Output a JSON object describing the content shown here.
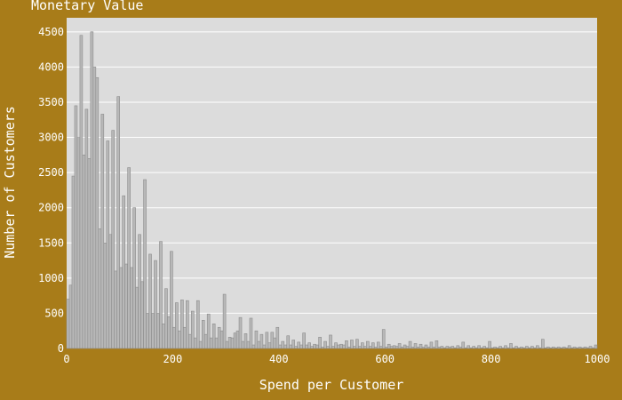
{
  "chart_data": {
    "type": "bar",
    "title": "Monetary Value",
    "xlabel": "Spend per Customer",
    "ylabel": "Number of Customers",
    "xlim": [
      0,
      1000
    ],
    "ylim": [
      0,
      4700
    ],
    "x_ticks": [
      0,
      200,
      400,
      600,
      800,
      1000
    ],
    "y_ticks": [
      0,
      500,
      1000,
      1500,
      2000,
      2500,
      3000,
      3500,
      4000,
      4500
    ],
    "grid": true,
    "colors": {
      "background": "#a87c19",
      "plot_background": "#dcdcdc",
      "bar_fill": "#b8b8b8",
      "bar_outline": "#8c8c8c",
      "text": "#ffffff"
    },
    "bin_width": 5,
    "x": [
      0,
      5,
      10,
      15,
      20,
      25,
      30,
      35,
      40,
      45,
      50,
      55,
      60,
      65,
      70,
      75,
      80,
      85,
      90,
      95,
      100,
      105,
      110,
      115,
      120,
      125,
      130,
      135,
      140,
      145,
      150,
      155,
      160,
      165,
      170,
      175,
      180,
      185,
      190,
      195,
      200,
      205,
      210,
      215,
      220,
      225,
      230,
      235,
      240,
      245,
      250,
      255,
      260,
      265,
      270,
      275,
      280,
      285,
      290,
      295,
      300,
      305,
      310,
      315,
      320,
      325,
      330,
      335,
      340,
      345,
      350,
      355,
      360,
      365,
      370,
      375,
      380,
      385,
      390,
      395,
      400,
      405,
      410,
      415,
      420,
      425,
      430,
      435,
      440,
      445,
      450,
      455,
      460,
      465,
      470,
      475,
      480,
      485,
      490,
      495,
      500,
      505,
      510,
      515,
      520,
      525,
      530,
      535,
      540,
      545,
      550,
      555,
      560,
      565,
      570,
      575,
      580,
      585,
      590,
      595,
      600,
      605,
      610,
      615,
      620,
      625,
      630,
      635,
      640,
      645,
      650,
      655,
      660,
      665,
      670,
      675,
      680,
      685,
      690,
      695,
      700,
      705,
      710,
      715,
      720,
      725,
      730,
      735,
      740,
      745,
      750,
      755,
      760,
      765,
      770,
      775,
      780,
      785,
      790,
      795,
      800,
      805,
      810,
      815,
      820,
      825,
      830,
      835,
      840,
      845,
      850,
      855,
      860,
      865,
      870,
      875,
      880,
      885,
      890,
      895,
      900,
      905,
      910,
      915,
      920,
      925,
      930,
      935,
      940,
      945,
      950,
      955,
      960,
      965,
      970,
      975,
      980,
      985,
      990,
      995
    ],
    "values": [
      700,
      900,
      2450,
      3450,
      3000,
      4450,
      2750,
      3400,
      2700,
      4500,
      4000,
      3850,
      1700,
      3330,
      1500,
      2950,
      1620,
      3100,
      1100,
      3580,
      1150,
      2170,
      1200,
      2570,
      1150,
      2000,
      870,
      1620,
      950,
      2400,
      500,
      1340,
      500,
      1250,
      500,
      1520,
      350,
      850,
      450,
      1380,
      300,
      650,
      250,
      690,
      300,
      680,
      200,
      530,
      150,
      680,
      100,
      400,
      200,
      490,
      150,
      350,
      150,
      300,
      250,
      770,
      100,
      160,
      150,
      220,
      250,
      440,
      100,
      210,
      100,
      430,
      50,
      250,
      100,
      200,
      50,
      230,
      80,
      230,
      150,
      300,
      50,
      100,
      50,
      180,
      50,
      120,
      30,
      90,
      50,
      220,
      50,
      80,
      30,
      60,
      50,
      160,
      20,
      100,
      30,
      190,
      30,
      80,
      50,
      60,
      50,
      110,
      20,
      120,
      30,
      130,
      30,
      80,
      30,
      100,
      30,
      80,
      20,
      90,
      30,
      270,
      20,
      60,
      30,
      40,
      30,
      70,
      20,
      50,
      30,
      100,
      20,
      70,
      20,
      60,
      20,
      50,
      20,
      90,
      20,
      110,
      20,
      30,
      10,
      30,
      20,
      30,
      10,
      40,
      20,
      90,
      10,
      40,
      10,
      30,
      10,
      40,
      10,
      30,
      10,
      100,
      10,
      20,
      10,
      30,
      10,
      40,
      10,
      70,
      10,
      30,
      10,
      20,
      10,
      30,
      10,
      30,
      10,
      40,
      10,
      130,
      10,
      20,
      10,
      20,
      10,
      20,
      10,
      20,
      10,
      40,
      10,
      20,
      10,
      20,
      10,
      20,
      10,
      30,
      10,
      50
    ]
  }
}
